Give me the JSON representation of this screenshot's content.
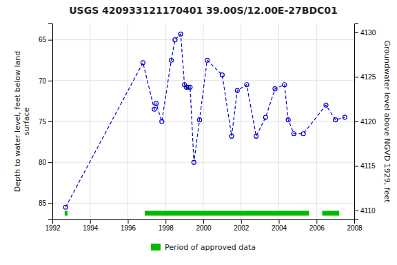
{
  "chart_data": {
    "type": "line",
    "title": "USGS 420933121170401 39.00S/12.00E-27BDC01",
    "y_label": "Depth to water level, feet below land\nsurface",
    "y2_label": "Groundwater level above NGVD 1929, feet",
    "xlim": [
      1992,
      2008
    ],
    "xticks": [
      1992,
      1994,
      1996,
      1998,
      2000,
      2002,
      2004,
      2006,
      2008
    ],
    "ylim": [
      87,
      63
    ],
    "yticks": [
      65,
      70,
      75,
      80,
      85
    ],
    "y2lim": [
      4109,
      4131
    ],
    "y2ticks": [
      4110,
      4115,
      4120,
      4125,
      4130
    ],
    "grid": true,
    "legend": "bottom",
    "series": [
      {
        "type": "line",
        "x": [
          1992.7,
          1996.8,
          1997.4,
          1997.5,
          1997.8,
          1998.3,
          1998.5,
          1998.8,
          1999.0,
          1999.1,
          1999.2,
          1999.3,
          1999.5,
          1999.8,
          2000.2,
          2001.0,
          2001.5,
          2001.8,
          2002.3,
          2002.8,
          2003.3,
          2003.8,
          2004.3,
          2004.5,
          2004.8,
          2005.3,
          2006.5,
          2007.0,
          2007.5
        ],
        "values": [
          85.5,
          67.8,
          73.5,
          72.8,
          75.0,
          67.5,
          65.0,
          64.3,
          70.5,
          70.8,
          70.8,
          70.8,
          80.0,
          74.8,
          67.5,
          69.3,
          76.8,
          71.2,
          70.5,
          76.8,
          74.5,
          71.0,
          70.5,
          74.8,
          76.5,
          76.5,
          73.0,
          74.8,
          74.5
        ],
        "color": "#0000cc",
        "line_style": "dashed",
        "marker": "open-circle"
      },
      {
        "type": "span",
        "name": "Period of approved data",
        "color": "#00bb00",
        "periods": [
          [
            1996.9,
            2005.6
          ],
          [
            2006.3,
            2007.2
          ],
          [
            1992.65,
            1992.8
          ]
        ]
      }
    ]
  }
}
